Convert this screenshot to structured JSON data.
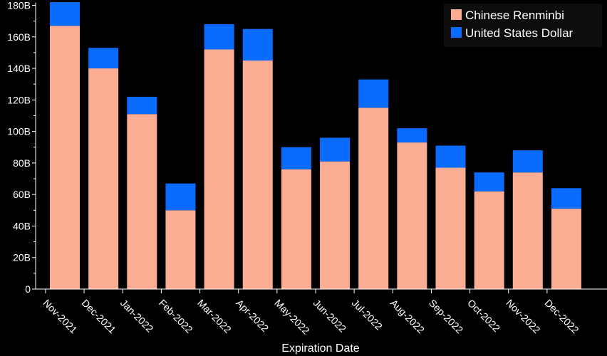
{
  "chart_data": {
    "type": "bar",
    "stacked": true,
    "categories": [
      "Nov-2021",
      "Dec-2021",
      "Jan-2022",
      "Feb-2022",
      "Mar-2022",
      "Apr-2022",
      "May-2022",
      "Jun-2022",
      "Jul-2022",
      "Aug-2022",
      "Sep-2022",
      "Oct-2022",
      "Nov-2022",
      "Dec-2022"
    ],
    "series": [
      {
        "name": "Chinese Renminbi",
        "color": "#fbad94",
        "values": [
          167,
          140,
          111,
          50,
          152,
          145,
          76,
          81,
          115,
          93,
          77,
          62,
          74,
          51
        ]
      },
      {
        "name": "United States Dollar",
        "color": "#0a6cff",
        "values": [
          15,
          13,
          11,
          17,
          16,
          20,
          14,
          15,
          18,
          9,
          14,
          12,
          14,
          13
        ]
      }
    ],
    "title": "",
    "xlabel": "Expiration Date",
    "ylabel": "",
    "ylim": [
      0,
      180
    ],
    "yticks": [
      0,
      20,
      40,
      60,
      80,
      100,
      120,
      140,
      160,
      180
    ],
    "ytick_labels": [
      "0",
      "20B",
      "40B",
      "60B",
      "80B",
      "100B",
      "120B",
      "140B",
      "160B",
      "180B"
    ],
    "grid": false,
    "legend_position": "top-right",
    "background": "#000000",
    "axis_color": "#ffffff"
  }
}
